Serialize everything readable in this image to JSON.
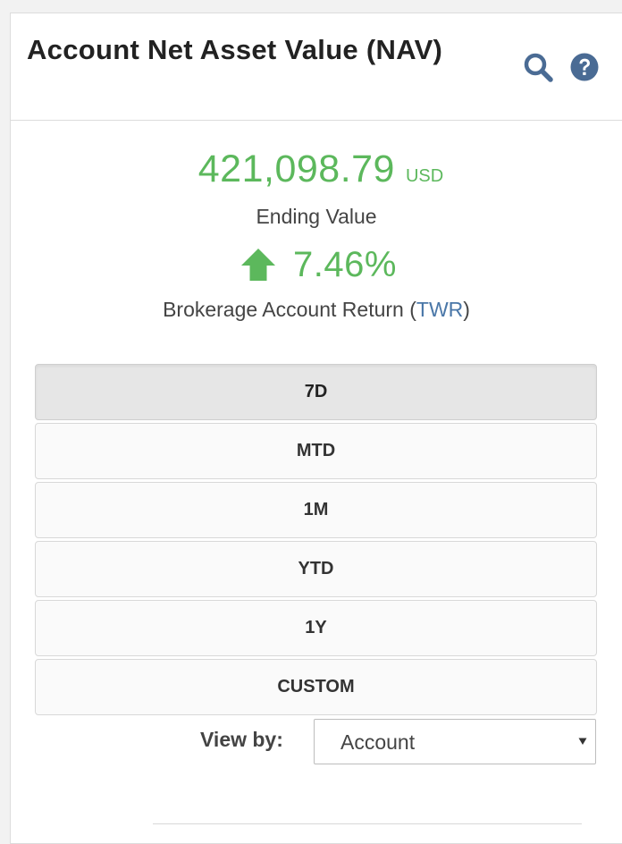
{
  "header": {
    "title": "Account Net Asset Value (NAV)",
    "search_icon": "search-icon",
    "help_icon": "question-circle-icon"
  },
  "summary": {
    "ending_value": "421,098.79",
    "currency": "USD",
    "ending_label": "Ending Value",
    "return_direction_icon": "arrow-up-icon",
    "return_value": "7.46%",
    "return_label_prefix": "Brokerage Account Return (",
    "return_label_link": "TWR",
    "return_label_suffix": ")"
  },
  "periods": {
    "selected": "7D",
    "items": [
      {
        "label": "7D"
      },
      {
        "label": "MTD"
      },
      {
        "label": "1M"
      },
      {
        "label": "YTD"
      },
      {
        "label": "1Y"
      },
      {
        "label": "CUSTOM"
      }
    ]
  },
  "view_by": {
    "label": "View by:",
    "selected": "Account"
  },
  "colors": {
    "positive": "#5cb85c",
    "icon": "#4a6b94",
    "link": "#4a77a8"
  }
}
